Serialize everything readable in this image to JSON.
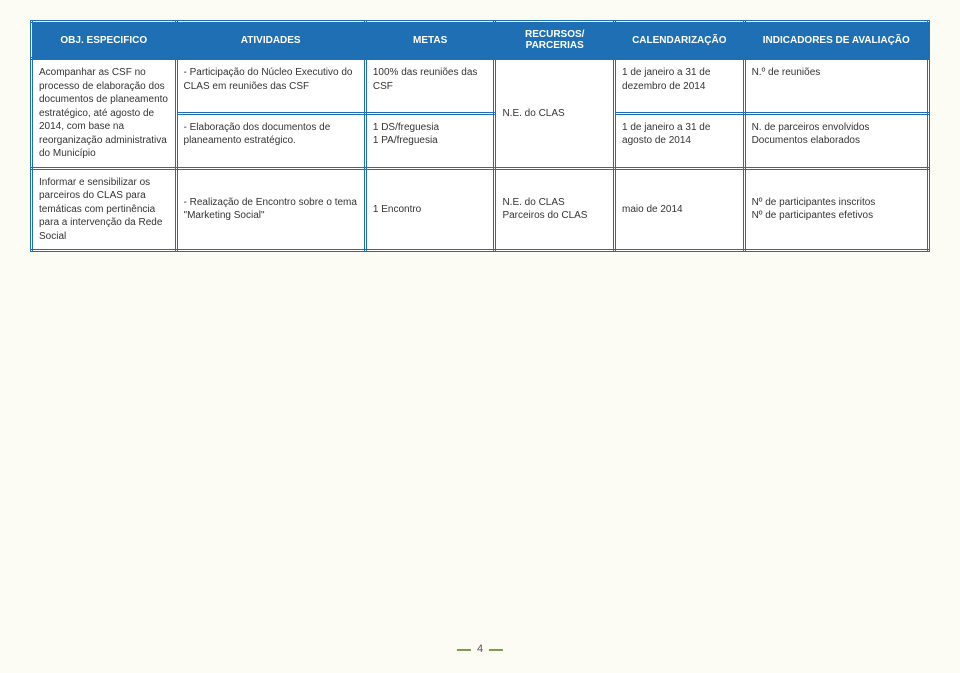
{
  "headers": {
    "obj": "OBJ. ESPECIFICO",
    "ativ": "ATIVIDADES",
    "metas": "METAS",
    "rec": "RECURSOS/ PARCERIAS",
    "cal": "CALENDARIZAÇÃO",
    "ind": "INDICADORES DE AVALIAÇÃO"
  },
  "rows": [
    {
      "obj": "Acompanhar as CSF no processo de elaboração dos documentos de planeamento estratégico, até agosto de 2014, com base na reorganização administrativa do Município",
      "ativ1": "- Participação do Núcleo Executivo do CLAS em reuniões das CSF",
      "ativ2": "- Elaboração dos documentos de planeamento estratégico.",
      "metas1": "100% das reuniões das CSF",
      "metas2a": "1 DS/freguesia",
      "metas2b": "1 PA/freguesia",
      "rec": "N.E. do CLAS",
      "cal1": "1 de janeiro a 31 de dezembro de 2014",
      "cal2": "1 de janeiro a 31 de agosto de 2014",
      "ind1": "N.º de reuniões",
      "ind2a": "N. de parceiros envolvidos",
      "ind2b": "Documentos elaborados"
    },
    {
      "obj": "Informar e sensibilizar os parceiros do CLAS para temáticas com pertinência para a intervenção da Rede Social",
      "ativ": "- Realização de Encontro sobre o tema \"Marketing Social\"",
      "metas": "1 Encontro",
      "rec1": "N.E. do CLAS",
      "rec2": "Parceiros do CLAS",
      "cal": "maio de 2014",
      "ind1": "Nº de participantes inscritos",
      "ind2": "Nº de participantes efetivos"
    }
  ],
  "pageNumber": "4",
  "colors": {
    "headerBg": "#1f6fb5",
    "headerText": "#ffffff",
    "border": "#1f6fb5",
    "pageBg": "#fdfcf4",
    "text": "#333333",
    "accent": "#7d9a4f"
  }
}
